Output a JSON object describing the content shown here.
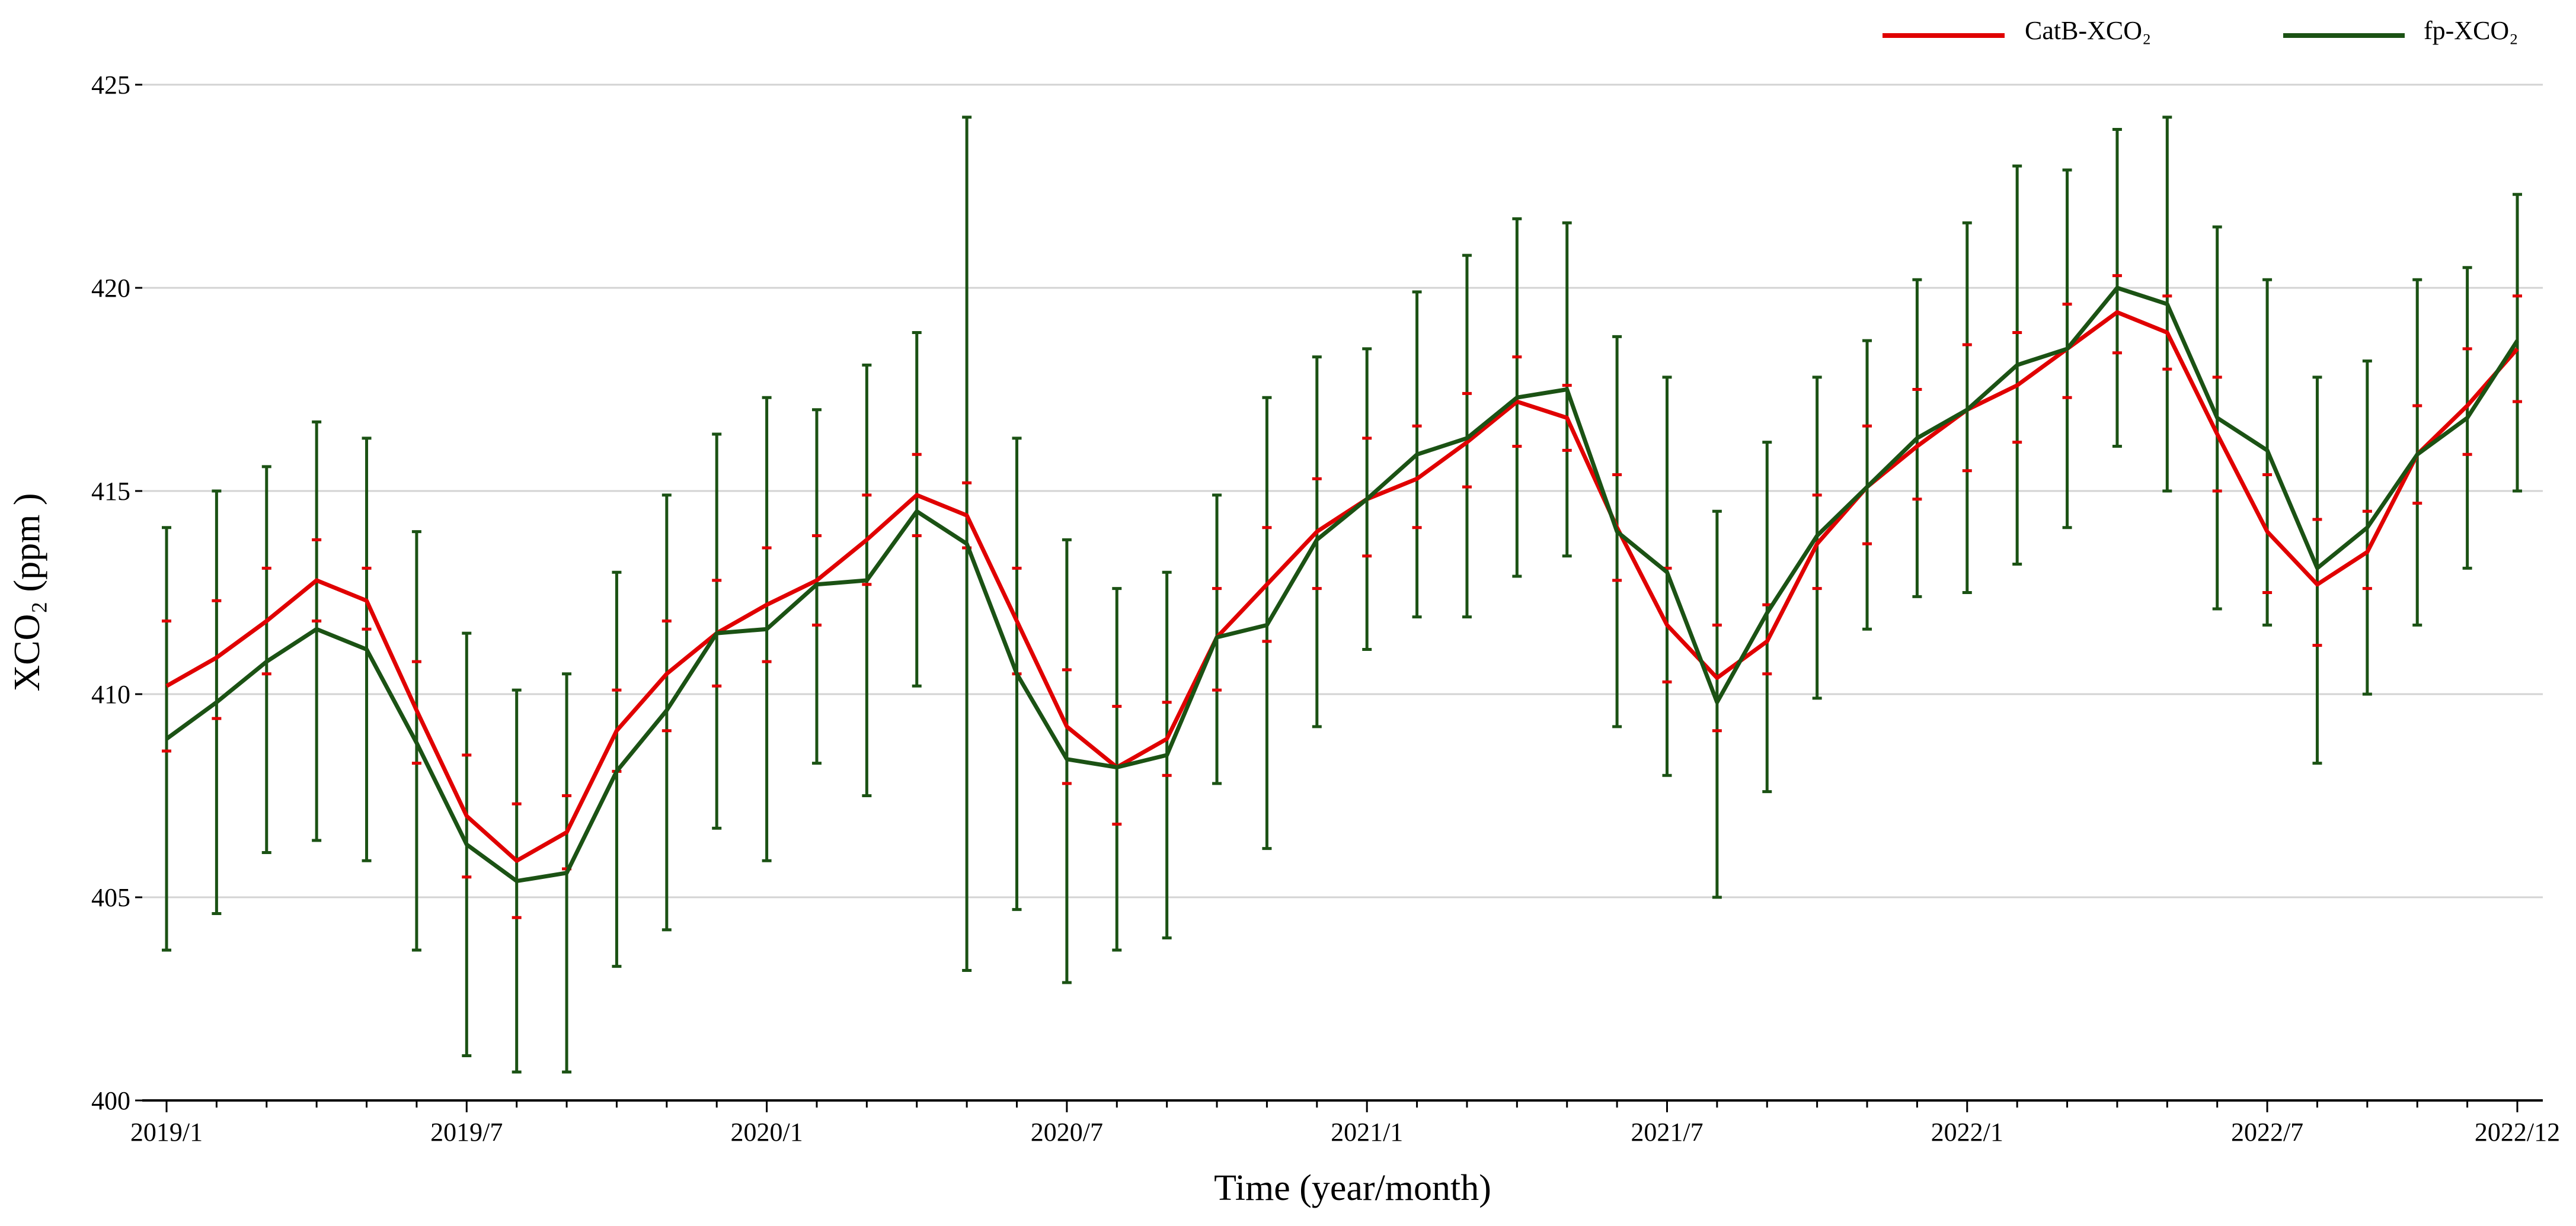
{
  "chart_data": {
    "type": "line",
    "title": "",
    "xlabel": "Time (year/month)",
    "ylabel": "XCO₂ (ppm )",
    "ylim": [
      400,
      425
    ],
    "yticks": [
      400,
      405,
      410,
      415,
      420,
      425
    ],
    "grid": "horizontal",
    "legend_position": "top-right",
    "x_tick_labels": [
      {
        "index": 0,
        "label": "2019/1"
      },
      {
        "index": 6,
        "label": "2019/7"
      },
      {
        "index": 12,
        "label": "2020/1"
      },
      {
        "index": 18,
        "label": "2020/7"
      },
      {
        "index": 24,
        "label": "2021/1"
      },
      {
        "index": 30,
        "label": "2021/7"
      },
      {
        "index": 36,
        "label": "2022/1"
      },
      {
        "index": 42,
        "label": "2022/7"
      },
      {
        "index": 47,
        "label": "2022/12"
      }
    ],
    "x": [
      "2019/1",
      "2019/2",
      "2019/3",
      "2019/4",
      "2019/5",
      "2019/6",
      "2019/7",
      "2019/8",
      "2019/9",
      "2019/10",
      "2019/11",
      "2019/12",
      "2020/1",
      "2020/2",
      "2020/3",
      "2020/4",
      "2020/5",
      "2020/6",
      "2020/7",
      "2020/8",
      "2020/9",
      "2020/10",
      "2020/11",
      "2020/12",
      "2021/1",
      "2021/2",
      "2021/3",
      "2021/4",
      "2021/5",
      "2021/6",
      "2021/7",
      "2021/8",
      "2021/9",
      "2021/10",
      "2021/11",
      "2021/12",
      "2022/1",
      "2022/2",
      "2022/3",
      "2022/4",
      "2022/5",
      "2022/6",
      "2022/7",
      "2022/8",
      "2022/9",
      "2022/10",
      "2022/11",
      "2022/12"
    ],
    "series": [
      {
        "name": "CatB-XCO₂",
        "color": "#e00000",
        "values": [
          410.2,
          410.9,
          411.8,
          412.8,
          412.3,
          409.6,
          407.0,
          405.9,
          406.6,
          409.1,
          410.5,
          411.5,
          412.2,
          412.8,
          413.8,
          414.9,
          414.4,
          411.8,
          409.2,
          408.2,
          408.9,
          411.4,
          412.7,
          414.0,
          414.8,
          415.3,
          416.2,
          417.2,
          416.8,
          414.1,
          411.7,
          410.4,
          411.3,
          413.7,
          415.1,
          416.1,
          417.0,
          417.6,
          418.5,
          419.4,
          418.9,
          416.4,
          414.0,
          412.7,
          413.5,
          415.9,
          417.1,
          418.5
        ],
        "error_low": [
          408.6,
          409.4,
          410.5,
          411.8,
          411.6,
          408.3,
          405.5,
          404.5,
          405.7,
          408.1,
          409.1,
          410.2,
          410.8,
          411.7,
          412.7,
          413.9,
          413.6,
          410.5,
          407.8,
          406.8,
          408.0,
          410.1,
          411.3,
          412.6,
          413.4,
          414.1,
          415.1,
          416.1,
          416.0,
          412.8,
          410.3,
          409.1,
          410.5,
          412.6,
          413.7,
          414.8,
          415.5,
          416.2,
          417.3,
          418.4,
          418.0,
          415.0,
          412.5,
          411.2,
          412.6,
          414.7,
          415.9,
          417.2
        ],
        "error_high": [
          411.8,
          412.3,
          413.1,
          413.8,
          413.1,
          410.8,
          408.5,
          407.3,
          407.5,
          410.1,
          411.8,
          412.8,
          413.6,
          413.9,
          414.9,
          415.9,
          415.2,
          413.1,
          410.6,
          409.7,
          409.8,
          412.6,
          414.1,
          415.3,
          416.3,
          416.6,
          417.4,
          418.3,
          417.6,
          415.4,
          413.1,
          411.7,
          412.2,
          414.9,
          416.6,
          417.5,
          418.6,
          418.9,
          419.6,
          420.3,
          419.8,
          417.8,
          415.4,
          414.3,
          414.5,
          417.1,
          418.5,
          419.8
        ]
      },
      {
        "name": "fp-XCO₂",
        "color": "#1b5214",
        "values": [
          408.9,
          409.8,
          410.8,
          411.6,
          411.1,
          408.8,
          406.3,
          405.4,
          405.6,
          408.1,
          409.6,
          411.5,
          411.6,
          412.7,
          412.8,
          414.5,
          413.7,
          410.5,
          408.4,
          408.2,
          408.5,
          411.4,
          411.7,
          413.8,
          414.8,
          415.9,
          416.3,
          417.3,
          417.5,
          414.0,
          413.0,
          409.8,
          412.0,
          413.9,
          415.1,
          416.3,
          417.0,
          418.1,
          418.5,
          420.0,
          419.6,
          416.8,
          416.0,
          413.1,
          414.1,
          415.9,
          416.8,
          418.7
        ],
        "error_low": [
          403.7,
          404.6,
          406.1,
          406.4,
          405.9,
          403.7,
          401.1,
          400.7,
          400.7,
          403.3,
          404.2,
          406.7,
          405.9,
          408.3,
          407.5,
          410.2,
          403.2,
          404.7,
          402.9,
          403.7,
          404.0,
          407.8,
          406.2,
          409.2,
          411.1,
          411.9,
          411.9,
          412.9,
          413.4,
          409.2,
          408.0,
          405.0,
          407.6,
          409.9,
          411.6,
          412.4,
          412.5,
          413.2,
          414.1,
          416.1,
          415.0,
          412.1,
          411.7,
          408.3,
          410.0,
          411.7,
          413.1,
          415.0
        ],
        "error_high": [
          414.1,
          415.0,
          415.6,
          416.7,
          416.3,
          414.0,
          411.5,
          410.1,
          410.5,
          413.0,
          414.9,
          416.4,
          417.3,
          417.0,
          418.1,
          418.9,
          424.2,
          416.3,
          413.8,
          412.6,
          413.0,
          414.9,
          417.3,
          418.3,
          418.5,
          419.9,
          420.8,
          421.7,
          421.6,
          418.8,
          417.8,
          414.5,
          416.2,
          417.8,
          418.7,
          420.2,
          421.6,
          423.0,
          422.9,
          423.9,
          424.2,
          421.5,
          420.2,
          417.8,
          418.2,
          420.2,
          420.5,
          422.3
        ]
      }
    ]
  }
}
